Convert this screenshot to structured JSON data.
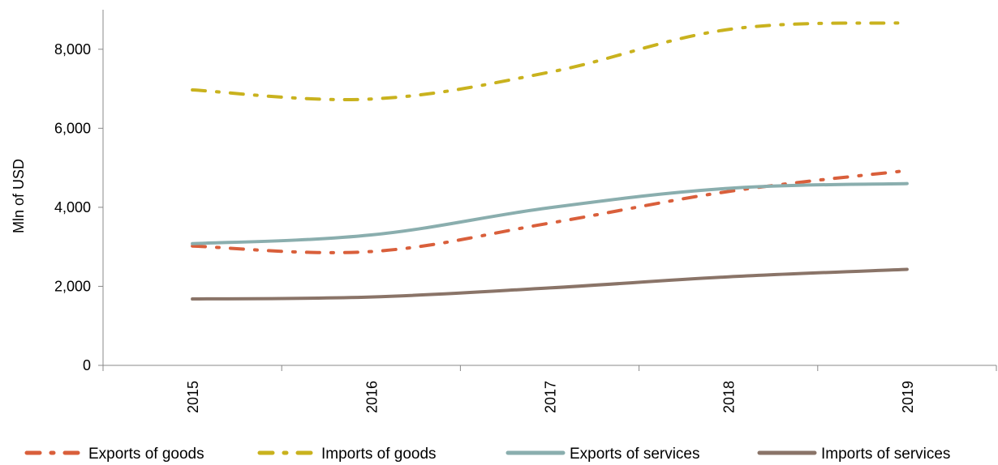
{
  "chart_data": {
    "type": "line",
    "title": "",
    "xlabel": "",
    "ylabel": "Mln of USD",
    "x": [
      "2015",
      "2016",
      "2017",
      "2018",
      "2019"
    ],
    "ylim": [
      0,
      9000
    ],
    "y_ticks": [
      0,
      2000,
      4000,
      6000,
      8000
    ],
    "y_tick_labels": [
      "0",
      "2,000",
      "4,000",
      "6,000",
      "8,000"
    ],
    "grid": false,
    "legend_position": "bottom",
    "series": [
      {
        "name": "Exports of goods",
        "values": [
          3020,
          2880,
          3600,
          4400,
          4930
        ],
        "color": "#d95f3b",
        "style": "dash-dot"
      },
      {
        "name": "Imports of goods",
        "values": [
          6970,
          6740,
          7420,
          8500,
          8670
        ],
        "color": "#c9b21e",
        "style": "dash-dot"
      },
      {
        "name": "Exports of services",
        "values": [
          3080,
          3300,
          3990,
          4480,
          4600
        ],
        "color": "#8aaeae",
        "style": "solid"
      },
      {
        "name": "Imports of services",
        "values": [
          1680,
          1730,
          1960,
          2240,
          2430
        ],
        "color": "#8a7468",
        "style": "solid"
      }
    ]
  }
}
